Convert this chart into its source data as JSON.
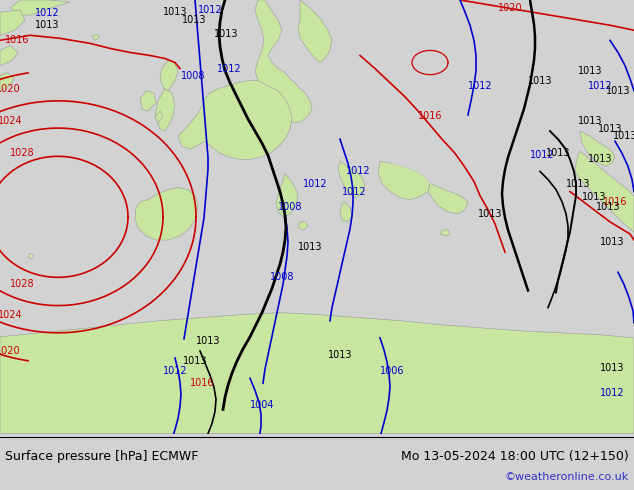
{
  "title_left": "Surface pressure [hPa] ECMWF",
  "title_right": "Mo 13-05-2024 18:00 UTC (12+150)",
  "credit": "©weatheronline.co.uk",
  "ocean_color": "#d2d2d2",
  "land_color": "#c8e6a0",
  "land_edge_color": "#999999",
  "mountain_color": "#b0b0b0",
  "bottom_bar_color": "#ffffff",
  "text_color_black": "#000000",
  "text_color_blue": "#0000cc",
  "text_color_red": "#cc0000",
  "text_color_credit": "#3333cc",
  "isobar_red_color": "#cc0000",
  "isobar_blue_color": "#0000cc",
  "isobar_black_color": "#000000",
  "fig_width": 6.34,
  "fig_height": 4.9,
  "dpi": 100
}
